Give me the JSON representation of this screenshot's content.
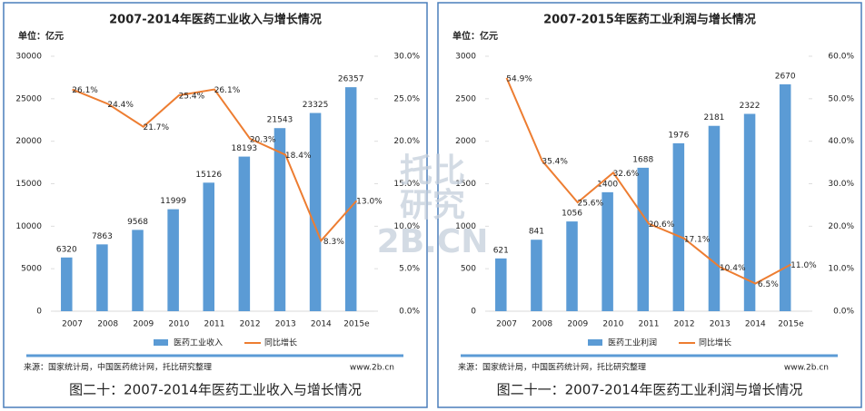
{
  "chart_data": [
    {
      "type": "bar-line",
      "title": "2007-2014年医药工业收入与增长情况",
      "unit_label": "单位：亿元",
      "categories": [
        "2007",
        "2008",
        "2009",
        "2010",
        "2011",
        "2012",
        "2013",
        "2014",
        "2015e"
      ],
      "series": [
        {
          "name": "医药工业收入",
          "type": "bar",
          "color": "#5b9bd5",
          "values": [
            6320,
            7863,
            9568,
            11999,
            15126,
            18193,
            21543,
            23325,
            26357
          ]
        },
        {
          "name": "同比增长",
          "type": "line",
          "color": "#ed7d31",
          "axis": "y2",
          "values": [
            26.1,
            24.4,
            21.7,
            25.4,
            26.1,
            20.3,
            18.4,
            8.3,
            13.0
          ],
          "value_labels": [
            "26.1%",
            "24.4%",
            "21.7%",
            "25.4%",
            "26.1%",
            "20.3%",
            "18.4%",
            "8.3%",
            "13.0%"
          ]
        }
      ],
      "ylim": [
        0,
        30000
      ],
      "yticks": [
        0,
        5000,
        10000,
        15000,
        20000,
        25000,
        30000
      ],
      "y2lim": [
        0,
        30
      ],
      "y2ticks": [
        {
          "value": 0,
          "label": "0.0%"
        },
        {
          "value": 5,
          "label": "5.0%"
        },
        {
          "value": 10,
          "label": "10.0%"
        },
        {
          "value": 15,
          "label": "15.0%"
        },
        {
          "value": 20,
          "label": "20.0%"
        },
        {
          "value": 25,
          "label": "25.0%"
        },
        {
          "value": 30,
          "label": "30.0%"
        }
      ],
      "legend": "bottom",
      "source": "来源：国家统计局，中国医药统计网，托比研究整理",
      "website": "www.2b.cn",
      "caption": "图二十：2007-2014年医药工业收入与增长情况"
    },
    {
      "type": "bar-line",
      "title": "2007-2015年医药工业利润与增长情况",
      "unit_label": "单位：亿元",
      "categories": [
        "2007",
        "2008",
        "2009",
        "2010",
        "2011",
        "2012",
        "2013",
        "2014",
        "2015e"
      ],
      "series": [
        {
          "name": "医药工业利润",
          "type": "bar",
          "color": "#5b9bd5",
          "values": [
            621,
            841,
            1056,
            1400,
            1688,
            1976,
            2181,
            2322,
            2670
          ]
        },
        {
          "name": "同比增长",
          "type": "line",
          "color": "#ed7d31",
          "axis": "y2",
          "values": [
            54.9,
            35.4,
            25.6,
            32.6,
            20.6,
            17.1,
            10.4,
            6.5,
            11.0
          ],
          "value_labels": [
            "54.9%",
            "35.4%",
            "25.6%",
            "32.6%",
            "20.6%",
            "17.1%",
            "10.4%",
            "6.5%",
            "11.0%"
          ]
        }
      ],
      "ylim": [
        0,
        3000
      ],
      "yticks": [
        0,
        500,
        1000,
        1500,
        2000,
        2500,
        3000
      ],
      "y2lim": [
        0,
        60
      ],
      "y2ticks": [
        {
          "value": 0,
          "label": "0.0%"
        },
        {
          "value": 10,
          "label": "10.0%"
        },
        {
          "value": 20,
          "label": "20.0%"
        },
        {
          "value": 30,
          "label": "30.0%"
        },
        {
          "value": 40,
          "label": "40.0%"
        },
        {
          "value": 50,
          "label": "50.0%"
        },
        {
          "value": 60,
          "label": "60.0%"
        }
      ],
      "legend": "bottom",
      "source": "来源：国家统计局，中国医药统计网，托比研究整理",
      "website": "www.2b.cn",
      "caption": "图二十一：2007-2014年医药工业利润与增长情况"
    }
  ],
  "watermark": {
    "lines": [
      "托比",
      "研究"
    ],
    "site": "2B.CN"
  }
}
